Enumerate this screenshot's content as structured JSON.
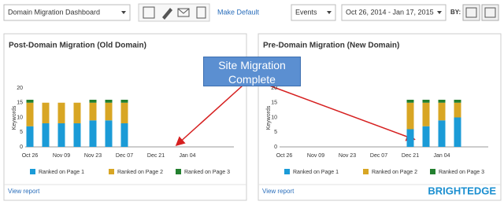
{
  "toolbar": {
    "dashboard": "Domain Migration Dashboard",
    "make_default": "Make Default",
    "events": "Events",
    "date_range": "Oct 26, 2014 - Jan 17, 2015",
    "by": "BY:"
  },
  "annotation": "Site Migration Complete",
  "links": [
    "View report",
    "View report"
  ],
  "brand": "BRIGHTEDGE",
  "chart_data": [
    {
      "type": "bar",
      "stacked": true,
      "title": "Post-Domain Migration (Old Domain)",
      "y_label": "Keywords",
      "categories": [
        "Oct 26",
        null,
        "Nov 09",
        null,
        "Nov 23",
        null,
        "Dec 07",
        null,
        "Dec 21",
        null,
        "Jan 04",
        null
      ],
      "series": [
        {
          "name": "Ranked on Page 1",
          "color": "#1b9bd7",
          "values": [
            7,
            8,
            8,
            8,
            9,
            9,
            8,
            null,
            null,
            null,
            null,
            null
          ]
        },
        {
          "name": "Ranked on Page 2",
          "color": "#d8a624",
          "values": [
            8,
            7,
            7,
            7,
            6,
            6,
            7,
            null,
            null,
            null,
            null,
            null
          ]
        },
        {
          "name": "Ranked on Page 3",
          "color": "#23802f",
          "values": [
            1,
            0,
            0,
            0,
            1,
            1,
            1,
            null,
            null,
            null,
            null,
            null
          ]
        }
      ],
      "ylim": [
        0,
        20
      ],
      "yticks": [
        0,
        5,
        10,
        15,
        20
      ],
      "grid": false
    },
    {
      "type": "bar",
      "stacked": true,
      "title": "Pre-Domain Migration (New Domain)",
      "y_label": "Keywords",
      "categories": [
        "Oct 26",
        null,
        "Nov 09",
        null,
        "Nov 23",
        null,
        "Dec 07",
        null,
        "Dec 21",
        null,
        "Jan 04",
        null
      ],
      "series": [
        {
          "name": "Ranked on Page 1",
          "color": "#1b9bd7",
          "values": [
            null,
            null,
            null,
            null,
            null,
            null,
            null,
            null,
            6,
            7,
            9,
            10
          ]
        },
        {
          "name": "Ranked on Page 2",
          "color": "#d8a624",
          "values": [
            null,
            null,
            null,
            null,
            null,
            null,
            null,
            null,
            9,
            8,
            6,
            5
          ]
        },
        {
          "name": "Ranked on Page 3",
          "color": "#23802f",
          "values": [
            null,
            null,
            null,
            null,
            null,
            null,
            null,
            null,
            1,
            1,
            1,
            1
          ]
        }
      ],
      "ylim": [
        0,
        20
      ],
      "yticks": [
        0,
        5,
        10,
        15,
        20
      ],
      "grid": false
    }
  ]
}
